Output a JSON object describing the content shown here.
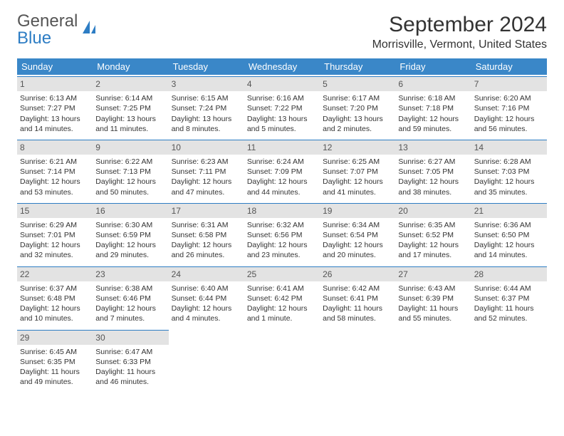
{
  "brand": {
    "top": "General",
    "bottom": "Blue"
  },
  "title": "September 2024",
  "location": "Morrisville, Vermont, United States",
  "colors": {
    "header_bg": "#3a87c8",
    "header_text": "#ffffff",
    "day_header_bg": "#e3e3e3",
    "day_header_border": "#2d7dc4",
    "text": "#333333",
    "brand_gray": "#555555",
    "brand_blue": "#2d7dc4",
    "background": "#ffffff"
  },
  "weekdays": [
    "Sunday",
    "Monday",
    "Tuesday",
    "Wednesday",
    "Thursday",
    "Friday",
    "Saturday"
  ],
  "weeks": [
    [
      {
        "day": "1",
        "sunrise": "6:13 AM",
        "sunset": "7:27 PM",
        "daylight": "13 hours and 14 minutes."
      },
      {
        "day": "2",
        "sunrise": "6:14 AM",
        "sunset": "7:25 PM",
        "daylight": "13 hours and 11 minutes."
      },
      {
        "day": "3",
        "sunrise": "6:15 AM",
        "sunset": "7:24 PM",
        "daylight": "13 hours and 8 minutes."
      },
      {
        "day": "4",
        "sunrise": "6:16 AM",
        "sunset": "7:22 PM",
        "daylight": "13 hours and 5 minutes."
      },
      {
        "day": "5",
        "sunrise": "6:17 AM",
        "sunset": "7:20 PM",
        "daylight": "13 hours and 2 minutes."
      },
      {
        "day": "6",
        "sunrise": "6:18 AM",
        "sunset": "7:18 PM",
        "daylight": "12 hours and 59 minutes."
      },
      {
        "day": "7",
        "sunrise": "6:20 AM",
        "sunset": "7:16 PM",
        "daylight": "12 hours and 56 minutes."
      }
    ],
    [
      {
        "day": "8",
        "sunrise": "6:21 AM",
        "sunset": "7:14 PM",
        "daylight": "12 hours and 53 minutes."
      },
      {
        "day": "9",
        "sunrise": "6:22 AM",
        "sunset": "7:13 PM",
        "daylight": "12 hours and 50 minutes."
      },
      {
        "day": "10",
        "sunrise": "6:23 AM",
        "sunset": "7:11 PM",
        "daylight": "12 hours and 47 minutes."
      },
      {
        "day": "11",
        "sunrise": "6:24 AM",
        "sunset": "7:09 PM",
        "daylight": "12 hours and 44 minutes."
      },
      {
        "day": "12",
        "sunrise": "6:25 AM",
        "sunset": "7:07 PM",
        "daylight": "12 hours and 41 minutes."
      },
      {
        "day": "13",
        "sunrise": "6:27 AM",
        "sunset": "7:05 PM",
        "daylight": "12 hours and 38 minutes."
      },
      {
        "day": "14",
        "sunrise": "6:28 AM",
        "sunset": "7:03 PM",
        "daylight": "12 hours and 35 minutes."
      }
    ],
    [
      {
        "day": "15",
        "sunrise": "6:29 AM",
        "sunset": "7:01 PM",
        "daylight": "12 hours and 32 minutes."
      },
      {
        "day": "16",
        "sunrise": "6:30 AM",
        "sunset": "6:59 PM",
        "daylight": "12 hours and 29 minutes."
      },
      {
        "day": "17",
        "sunrise": "6:31 AM",
        "sunset": "6:58 PM",
        "daylight": "12 hours and 26 minutes."
      },
      {
        "day": "18",
        "sunrise": "6:32 AM",
        "sunset": "6:56 PM",
        "daylight": "12 hours and 23 minutes."
      },
      {
        "day": "19",
        "sunrise": "6:34 AM",
        "sunset": "6:54 PM",
        "daylight": "12 hours and 20 minutes."
      },
      {
        "day": "20",
        "sunrise": "6:35 AM",
        "sunset": "6:52 PM",
        "daylight": "12 hours and 17 minutes."
      },
      {
        "day": "21",
        "sunrise": "6:36 AM",
        "sunset": "6:50 PM",
        "daylight": "12 hours and 14 minutes."
      }
    ],
    [
      {
        "day": "22",
        "sunrise": "6:37 AM",
        "sunset": "6:48 PM",
        "daylight": "12 hours and 10 minutes."
      },
      {
        "day": "23",
        "sunrise": "6:38 AM",
        "sunset": "6:46 PM",
        "daylight": "12 hours and 7 minutes."
      },
      {
        "day": "24",
        "sunrise": "6:40 AM",
        "sunset": "6:44 PM",
        "daylight": "12 hours and 4 minutes."
      },
      {
        "day": "25",
        "sunrise": "6:41 AM",
        "sunset": "6:42 PM",
        "daylight": "12 hours and 1 minute."
      },
      {
        "day": "26",
        "sunrise": "6:42 AM",
        "sunset": "6:41 PM",
        "daylight": "11 hours and 58 minutes."
      },
      {
        "day": "27",
        "sunrise": "6:43 AM",
        "sunset": "6:39 PM",
        "daylight": "11 hours and 55 minutes."
      },
      {
        "day": "28",
        "sunrise": "6:44 AM",
        "sunset": "6:37 PM",
        "daylight": "11 hours and 52 minutes."
      }
    ],
    [
      {
        "day": "29",
        "sunrise": "6:45 AM",
        "sunset": "6:35 PM",
        "daylight": "11 hours and 49 minutes."
      },
      {
        "day": "30",
        "sunrise": "6:47 AM",
        "sunset": "6:33 PM",
        "daylight": "11 hours and 46 minutes."
      },
      null,
      null,
      null,
      null,
      null
    ]
  ],
  "labels": {
    "sunrise": "Sunrise:",
    "sunset": "Sunset:",
    "daylight": "Daylight:"
  }
}
